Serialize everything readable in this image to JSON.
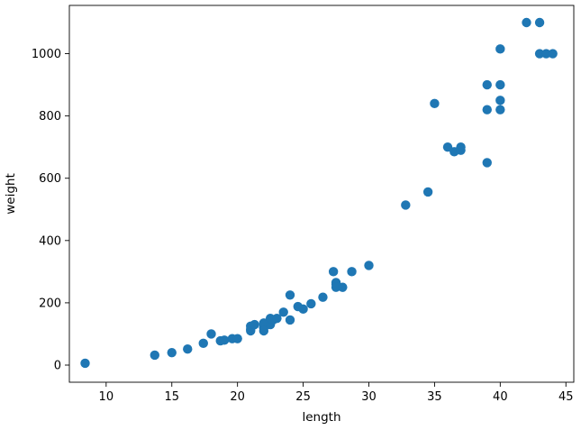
{
  "chart_data": {
    "type": "scatter",
    "title": "",
    "xlabel": "length",
    "ylabel": "weight",
    "xlim": [
      7.2,
      45.6
    ],
    "ylim": [
      -55,
      1155
    ],
    "xticks": [
      10,
      15,
      20,
      25,
      30,
      35,
      40,
      45
    ],
    "yticks": [
      0,
      200,
      400,
      600,
      800,
      1000
    ],
    "grid": false,
    "legend": "none",
    "marker_color": "#1f77b4",
    "series": [
      {
        "x": [
          8.4,
          13.7,
          15.0,
          16.2,
          17.4,
          18.0,
          18.7,
          19.0,
          19.6,
          20.0,
          21.0,
          21.0,
          21.0,
          21.3,
          22.0,
          22.0,
          22.0,
          22.0,
          22.0,
          22.5,
          22.5,
          22.7,
          23.0,
          23.5,
          24.0,
          24.0,
          24.6,
          25.0,
          25.6,
          26.5,
          27.3,
          27.5,
          27.5,
          27.5,
          28.0,
          28.7,
          30.0,
          32.8,
          34.5,
          35.0,
          36.5,
          36.0,
          37.0,
          37.0,
          39.0,
          39.0,
          39.0,
          40.0,
          40.0,
          40.0,
          40.0,
          42.0,
          43.0,
          43.0,
          43.5,
          44.0
        ],
        "y": [
          5.9,
          32.0,
          40.0,
          51.5,
          70.0,
          100.0,
          78.0,
          80.0,
          85.0,
          85.0,
          110.0,
          115.0,
          125.0,
          130.0,
          120.0,
          120.0,
          130.0,
          135.0,
          110.0,
          130.0,
          150.0,
          145.0,
          150.0,
          170.0,
          225.0,
          145.0,
          188.0,
          180.0,
          197.0,
          218.0,
          300.0,
          260.0,
          265.0,
          250.0,
          250.0,
          300.0,
          320.0,
          514.0,
          556.0,
          840.0,
          685.0,
          700.0,
          700.0,
          690.0,
          900.0,
          650.0,
          820.0,
          850.0,
          900.0,
          1015.0,
          820.0,
          1100.0,
          1000.0,
          1100.0,
          1000.0,
          1000.0
        ]
      }
    ]
  }
}
